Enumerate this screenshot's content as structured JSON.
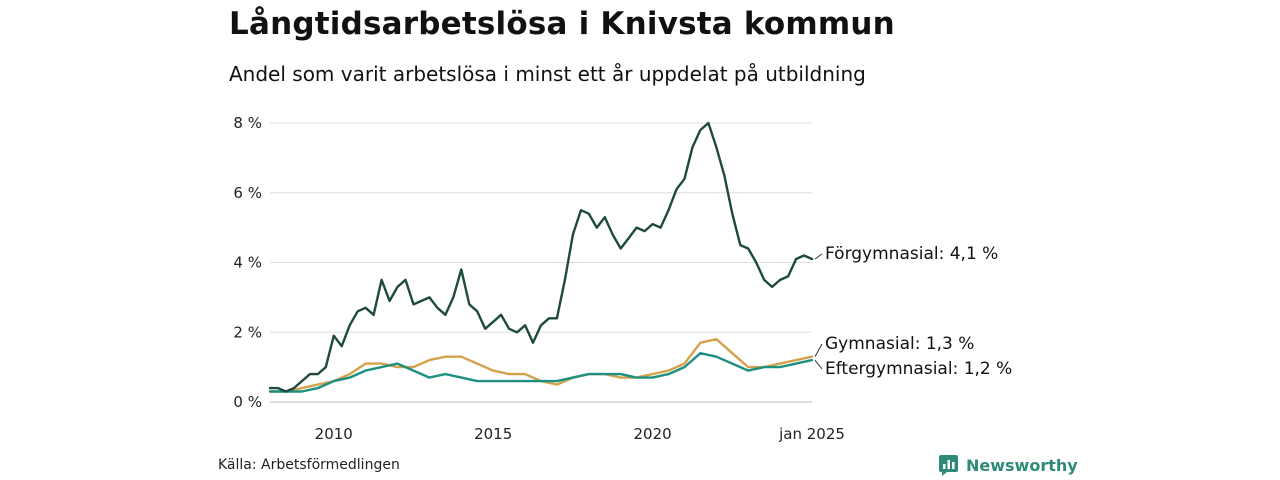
{
  "header": {
    "title": "Långtidsarbetslösa i Knivsta kommun",
    "subtitle": "Andel som varit arbetslösa i minst ett år uppdelat på utbildning"
  },
  "footer": {
    "source": "Källa: Arbetsförmedlingen",
    "brand": "Newsworthy"
  },
  "colors": {
    "forgymnasial": "#1f4a3e",
    "gymnasial": "#d4a24c",
    "eftergymnasial": "#1e9081",
    "grid": "#dddddd",
    "brand": "#2e8b79"
  },
  "chart_data": {
    "type": "line",
    "title": "Långtidsarbetslösa i Knivsta kommun",
    "subtitle": "Andel som varit arbetslösa i minst ett år uppdelat på utbildning",
    "xlabel": "",
    "ylabel": "",
    "xlim": [
      "2008-01",
      "2025-01"
    ],
    "ylim": [
      0,
      8
    ],
    "y_ticks": [
      0,
      2,
      4,
      6,
      8
    ],
    "y_tick_labels": [
      "0 %",
      "2 %",
      "4 %",
      "6 %",
      "8 %"
    ],
    "x_ticks": [
      "2010-01",
      "2015-01",
      "2020-01",
      "2025-01"
    ],
    "x_tick_labels": [
      "2010",
      "2015",
      "2020",
      "jan 2025"
    ],
    "grid": true,
    "legend": "end-labels",
    "series": [
      {
        "name": "Förgymnasial",
        "end_label": "Förgymnasial: 4,1 %",
        "color": "#1f4a3e",
        "points": [
          [
            "2008-01",
            0.4
          ],
          [
            "2008-04",
            0.4
          ],
          [
            "2008-07",
            0.3
          ],
          [
            "2008-10",
            0.4
          ],
          [
            "2009-01",
            0.6
          ],
          [
            "2009-04",
            0.8
          ],
          [
            "2009-07",
            0.8
          ],
          [
            "2009-10",
            1.0
          ],
          [
            "2010-01",
            1.9
          ],
          [
            "2010-04",
            1.6
          ],
          [
            "2010-07",
            2.2
          ],
          [
            "2010-10",
            2.6
          ],
          [
            "2011-01",
            2.7
          ],
          [
            "2011-04",
            2.5
          ],
          [
            "2011-07",
            3.5
          ],
          [
            "2011-10",
            2.9
          ],
          [
            "2012-01",
            3.3
          ],
          [
            "2012-04",
            3.5
          ],
          [
            "2012-07",
            2.8
          ],
          [
            "2012-10",
            2.9
          ],
          [
            "2013-01",
            3.0
          ],
          [
            "2013-04",
            2.7
          ],
          [
            "2013-07",
            2.5
          ],
          [
            "2013-10",
            3.0
          ],
          [
            "2014-01",
            3.8
          ],
          [
            "2014-04",
            2.8
          ],
          [
            "2014-07",
            2.6
          ],
          [
            "2014-10",
            2.1
          ],
          [
            "2015-01",
            2.3
          ],
          [
            "2015-04",
            2.5
          ],
          [
            "2015-07",
            2.1
          ],
          [
            "2015-10",
            2.0
          ],
          [
            "2016-01",
            2.2
          ],
          [
            "2016-04",
            1.7
          ],
          [
            "2016-07",
            2.2
          ],
          [
            "2016-10",
            2.4
          ],
          [
            "2017-01",
            2.4
          ],
          [
            "2017-04",
            3.5
          ],
          [
            "2017-07",
            4.8
          ],
          [
            "2017-10",
            5.5
          ],
          [
            "2018-01",
            5.4
          ],
          [
            "2018-04",
            5.0
          ],
          [
            "2018-07",
            5.3
          ],
          [
            "2018-10",
            4.8
          ],
          [
            "2019-01",
            4.4
          ],
          [
            "2019-04",
            4.7
          ],
          [
            "2019-07",
            5.0
          ],
          [
            "2019-10",
            4.9
          ],
          [
            "2020-01",
            5.1
          ],
          [
            "2020-04",
            5.0
          ],
          [
            "2020-07",
            5.5
          ],
          [
            "2020-10",
            6.1
          ],
          [
            "2021-01",
            6.4
          ],
          [
            "2021-04",
            7.3
          ],
          [
            "2021-07",
            7.8
          ],
          [
            "2021-10",
            8.0
          ],
          [
            "2022-01",
            7.3
          ],
          [
            "2022-04",
            6.5
          ],
          [
            "2022-07",
            5.4
          ],
          [
            "2022-10",
            4.5
          ],
          [
            "2023-01",
            4.4
          ],
          [
            "2023-04",
            4.0
          ],
          [
            "2023-07",
            3.5
          ],
          [
            "2023-10",
            3.3
          ],
          [
            "2024-01",
            3.5
          ],
          [
            "2024-04",
            3.6
          ],
          [
            "2024-07",
            4.1
          ],
          [
            "2024-10",
            4.2
          ],
          [
            "2025-01",
            4.1
          ]
        ]
      },
      {
        "name": "Gymnasial",
        "end_label": "Gymnasial: 1,3 %",
        "color": "#d4a24c",
        "points": [
          [
            "2008-01",
            0.3
          ],
          [
            "2008-07",
            0.3
          ],
          [
            "2009-01",
            0.4
          ],
          [
            "2009-07",
            0.5
          ],
          [
            "2010-01",
            0.6
          ],
          [
            "2010-07",
            0.8
          ],
          [
            "2011-01",
            1.1
          ],
          [
            "2011-07",
            1.1
          ],
          [
            "2012-01",
            1.0
          ],
          [
            "2012-07",
            1.0
          ],
          [
            "2013-01",
            1.2
          ],
          [
            "2013-07",
            1.3
          ],
          [
            "2014-01",
            1.3
          ],
          [
            "2014-07",
            1.1
          ],
          [
            "2015-01",
            0.9
          ],
          [
            "2015-07",
            0.8
          ],
          [
            "2016-01",
            0.8
          ],
          [
            "2016-07",
            0.6
          ],
          [
            "2017-01",
            0.5
          ],
          [
            "2017-07",
            0.7
          ],
          [
            "2018-01",
            0.8
          ],
          [
            "2018-07",
            0.8
          ],
          [
            "2019-01",
            0.7
          ],
          [
            "2019-07",
            0.7
          ],
          [
            "2020-01",
            0.8
          ],
          [
            "2020-07",
            0.9
          ],
          [
            "2021-01",
            1.1
          ],
          [
            "2021-07",
            1.7
          ],
          [
            "2022-01",
            1.8
          ],
          [
            "2022-07",
            1.4
          ],
          [
            "2023-01",
            1.0
          ],
          [
            "2023-07",
            1.0
          ],
          [
            "2024-01",
            1.1
          ],
          [
            "2024-07",
            1.2
          ],
          [
            "2025-01",
            1.3
          ]
        ]
      },
      {
        "name": "Eftergymnasial",
        "end_label": "Eftergymnasial: 1,2 %",
        "color": "#1e9081",
        "points": [
          [
            "2008-01",
            0.3
          ],
          [
            "2008-07",
            0.3
          ],
          [
            "2009-01",
            0.3
          ],
          [
            "2009-07",
            0.4
          ],
          [
            "2010-01",
            0.6
          ],
          [
            "2010-07",
            0.7
          ],
          [
            "2011-01",
            0.9
          ],
          [
            "2011-07",
            1.0
          ],
          [
            "2012-01",
            1.1
          ],
          [
            "2012-07",
            0.9
          ],
          [
            "2013-01",
            0.7
          ],
          [
            "2013-07",
            0.8
          ],
          [
            "2014-01",
            0.7
          ],
          [
            "2014-07",
            0.6
          ],
          [
            "2015-01",
            0.6
          ],
          [
            "2015-07",
            0.6
          ],
          [
            "2016-01",
            0.6
          ],
          [
            "2016-07",
            0.6
          ],
          [
            "2017-01",
            0.6
          ],
          [
            "2017-07",
            0.7
          ],
          [
            "2018-01",
            0.8
          ],
          [
            "2018-07",
            0.8
          ],
          [
            "2019-01",
            0.8
          ],
          [
            "2019-07",
            0.7
          ],
          [
            "2020-01",
            0.7
          ],
          [
            "2020-07",
            0.8
          ],
          [
            "2021-01",
            1.0
          ],
          [
            "2021-07",
            1.4
          ],
          [
            "2022-01",
            1.3
          ],
          [
            "2022-07",
            1.1
          ],
          [
            "2023-01",
            0.9
          ],
          [
            "2023-07",
            1.0
          ],
          [
            "2024-01",
            1.0
          ],
          [
            "2024-07",
            1.1
          ],
          [
            "2025-01",
            1.2
          ]
        ]
      }
    ]
  }
}
